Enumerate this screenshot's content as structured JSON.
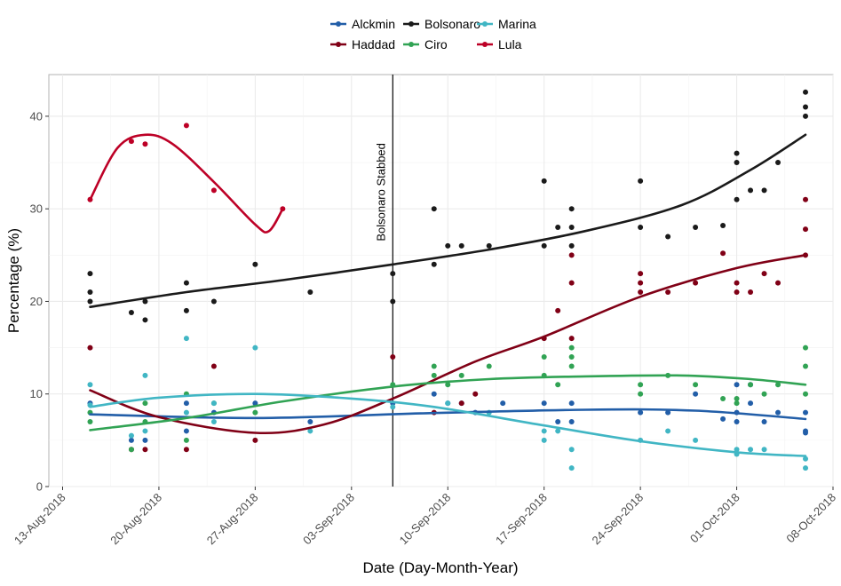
{
  "chart_data": {
    "type": "scatter",
    "title": "",
    "xlabel": "Date (Day-Month-Year)",
    "ylabel": "Percentage (%)",
    "x_ticks": [
      "13-Aug-2018",
      "20-Aug-2018",
      "27-Aug-2018",
      "03-Sep-2018",
      "10-Sep-2018",
      "17-Sep-2018",
      "24-Sep-2018",
      "01-Oct-2018",
      "08-Oct-2018"
    ],
    "xlim": [
      "2018-08-12",
      "2018-10-08"
    ],
    "y_ticks": [
      0,
      10,
      20,
      30,
      40
    ],
    "ylim": [
      0,
      44.5
    ],
    "grid": true,
    "legend_position": "top",
    "annotation": {
      "date": "2018-09-06",
      "label": "Bolsonaro Stabbed"
    },
    "series": [
      {
        "name": "Alckmin",
        "color": "#225ea8",
        "points": [
          [
            "2018-08-15",
            9
          ],
          [
            "2018-08-18",
            5
          ],
          [
            "2018-08-19",
            5
          ],
          [
            "2018-08-22",
            9
          ],
          [
            "2018-08-22",
            6
          ],
          [
            "2018-08-24",
            8
          ],
          [
            "2018-08-27",
            9
          ],
          [
            "2018-08-31",
            7
          ],
          [
            "2018-09-06",
            9
          ],
          [
            "2018-09-09",
            10
          ],
          [
            "2018-09-10",
            9
          ],
          [
            "2018-09-11",
            9
          ],
          [
            "2018-09-12",
            8
          ],
          [
            "2018-09-14",
            9
          ],
          [
            "2018-09-17",
            9
          ],
          [
            "2018-09-18",
            7
          ],
          [
            "2018-09-19",
            7
          ],
          [
            "2018-09-19",
            9
          ],
          [
            "2018-09-24",
            8
          ],
          [
            "2018-09-26",
            8
          ],
          [
            "2018-09-28",
            10
          ],
          [
            "2018-09-30",
            7.3
          ],
          [
            "2018-10-01",
            11
          ],
          [
            "2018-10-01",
            8
          ],
          [
            "2018-10-01",
            7
          ],
          [
            "2018-10-02",
            11
          ],
          [
            "2018-10-02",
            9
          ],
          [
            "2018-10-03",
            7
          ],
          [
            "2018-10-04",
            8
          ],
          [
            "2018-10-06",
            8
          ],
          [
            "2018-10-06",
            6
          ],
          [
            "2018-10-06",
            5.8
          ]
        ],
        "trend": [
          [
            "2018-08-15",
            7.8
          ],
          [
            "2018-08-27",
            7.4
          ],
          [
            "2018-09-08",
            7.9
          ],
          [
            "2018-09-20",
            8.3
          ],
          [
            "2018-09-28",
            8.2
          ],
          [
            "2018-10-06",
            7.3
          ]
        ]
      },
      {
        "name": "Haddad",
        "color": "#800016",
        "points": [
          [
            "2018-08-15",
            15
          ],
          [
            "2018-08-18",
            4
          ],
          [
            "2018-08-19",
            4
          ],
          [
            "2018-08-22",
            4
          ],
          [
            "2018-08-24",
            13
          ],
          [
            "2018-08-27",
            5
          ],
          [
            "2018-09-06",
            14
          ],
          [
            "2018-09-09",
            8
          ],
          [
            "2018-09-11",
            9
          ],
          [
            "2018-09-12",
            10
          ],
          [
            "2018-09-17",
            16
          ],
          [
            "2018-09-18",
            19
          ],
          [
            "2018-09-19",
            25
          ],
          [
            "2018-09-19",
            22
          ],
          [
            "2018-09-19",
            16
          ],
          [
            "2018-09-24",
            23
          ],
          [
            "2018-09-24",
            22
          ],
          [
            "2018-09-24",
            21
          ],
          [
            "2018-09-26",
            21
          ],
          [
            "2018-09-28",
            22
          ],
          [
            "2018-09-30",
            25.2
          ],
          [
            "2018-10-01",
            22
          ],
          [
            "2018-10-01",
            21
          ],
          [
            "2018-10-02",
            21
          ],
          [
            "2018-10-03",
            23
          ],
          [
            "2018-10-04",
            22
          ],
          [
            "2018-10-06",
            31
          ],
          [
            "2018-10-06",
            27.8
          ],
          [
            "2018-10-06",
            25
          ]
        ],
        "trend": [
          [
            "2018-08-15",
            10.4
          ],
          [
            "2018-08-20",
            7.5
          ],
          [
            "2018-08-27",
            5.8
          ],
          [
            "2018-09-01",
            6.7
          ],
          [
            "2018-09-06",
            9.5
          ],
          [
            "2018-09-12",
            13.5
          ],
          [
            "2018-09-17",
            16.2
          ],
          [
            "2018-09-24",
            20.5
          ],
          [
            "2018-10-01",
            23.6
          ],
          [
            "2018-10-06",
            25
          ]
        ]
      },
      {
        "name": "Bolsonaro",
        "color": "#1a1a1a",
        "points": [
          [
            "2018-08-15",
            23
          ],
          [
            "2018-08-15",
            21
          ],
          [
            "2018-08-15",
            20
          ],
          [
            "2018-08-18",
            18.8
          ],
          [
            "2018-08-19",
            20
          ],
          [
            "2018-08-19",
            18
          ],
          [
            "2018-08-22",
            22
          ],
          [
            "2018-08-22",
            19
          ],
          [
            "2018-08-24",
            20
          ],
          [
            "2018-08-27",
            24
          ],
          [
            "2018-08-31",
            21
          ],
          [
            "2018-09-06",
            23
          ],
          [
            "2018-09-06",
            20
          ],
          [
            "2018-09-09",
            30
          ],
          [
            "2018-09-09",
            24
          ],
          [
            "2018-09-10",
            26
          ],
          [
            "2018-09-11",
            26
          ],
          [
            "2018-09-13",
            26
          ],
          [
            "2018-09-17",
            33
          ],
          [
            "2018-09-17",
            26
          ],
          [
            "2018-09-18",
            28
          ],
          [
            "2018-09-19",
            30
          ],
          [
            "2018-09-19",
            28
          ],
          [
            "2018-09-19",
            26
          ],
          [
            "2018-09-24",
            33
          ],
          [
            "2018-09-24",
            28
          ],
          [
            "2018-09-26",
            27
          ],
          [
            "2018-09-28",
            28
          ],
          [
            "2018-09-30",
            28.2
          ],
          [
            "2018-10-01",
            36
          ],
          [
            "2018-10-01",
            35
          ],
          [
            "2018-10-01",
            31
          ],
          [
            "2018-10-02",
            32
          ],
          [
            "2018-10-03",
            32
          ],
          [
            "2018-10-04",
            35
          ],
          [
            "2018-10-06",
            42.6
          ],
          [
            "2018-10-06",
            41
          ],
          [
            "2018-10-06",
            40
          ]
        ],
        "trend": [
          [
            "2018-08-15",
            19.4
          ],
          [
            "2018-08-22",
            21
          ],
          [
            "2018-08-29",
            22.3
          ],
          [
            "2018-09-06",
            24
          ],
          [
            "2018-09-13",
            25.6
          ],
          [
            "2018-09-20",
            27.6
          ],
          [
            "2018-09-27",
            30.4
          ],
          [
            "2018-10-02",
            34.2
          ],
          [
            "2018-10-06",
            38
          ]
        ]
      },
      {
        "name": "Ciro",
        "color": "#31a354",
        "points": [
          [
            "2018-08-15",
            8
          ],
          [
            "2018-08-15",
            7
          ],
          [
            "2018-08-18",
            4
          ],
          [
            "2018-08-19",
            9
          ],
          [
            "2018-08-19",
            7
          ],
          [
            "2018-08-22",
            10
          ],
          [
            "2018-08-22",
            5
          ],
          [
            "2018-08-24",
            9
          ],
          [
            "2018-08-27",
            8
          ],
          [
            "2018-09-06",
            11
          ],
          [
            "2018-09-09",
            13
          ],
          [
            "2018-09-09",
            12
          ],
          [
            "2018-09-10",
            11
          ],
          [
            "2018-09-11",
            12
          ],
          [
            "2018-09-13",
            13
          ],
          [
            "2018-09-17",
            14
          ],
          [
            "2018-09-17",
            12
          ],
          [
            "2018-09-18",
            11
          ],
          [
            "2018-09-19",
            15
          ],
          [
            "2018-09-19",
            14
          ],
          [
            "2018-09-19",
            13
          ],
          [
            "2018-09-24",
            11
          ],
          [
            "2018-09-24",
            10
          ],
          [
            "2018-09-26",
            12
          ],
          [
            "2018-09-28",
            11
          ],
          [
            "2018-09-30",
            9.5
          ],
          [
            "2018-10-01",
            9.5
          ],
          [
            "2018-10-01",
            9
          ],
          [
            "2018-10-02",
            11
          ],
          [
            "2018-10-03",
            10
          ],
          [
            "2018-10-04",
            11
          ],
          [
            "2018-10-06",
            15
          ],
          [
            "2018-10-06",
            13
          ],
          [
            "2018-10-06",
            10
          ]
        ],
        "trend": [
          [
            "2018-08-15",
            6.1
          ],
          [
            "2018-08-22",
            7.4
          ],
          [
            "2018-08-29",
            9.2
          ],
          [
            "2018-09-06",
            10.8
          ],
          [
            "2018-09-13",
            11.6
          ],
          [
            "2018-09-20",
            11.9
          ],
          [
            "2018-09-27",
            12
          ],
          [
            "2018-10-02",
            11.6
          ],
          [
            "2018-10-06",
            11
          ]
        ]
      },
      {
        "name": "Marina",
        "color": "#41b6c4",
        "points": [
          [
            "2018-08-15",
            11
          ],
          [
            "2018-08-15",
            8.8
          ],
          [
            "2018-08-18",
            5.5
          ],
          [
            "2018-08-19",
            12
          ],
          [
            "2018-08-19",
            6
          ],
          [
            "2018-08-22",
            16
          ],
          [
            "2018-08-22",
            8
          ],
          [
            "2018-08-24",
            9
          ],
          [
            "2018-08-24",
            7
          ],
          [
            "2018-08-27",
            15
          ],
          [
            "2018-08-31",
            6
          ],
          [
            "2018-09-06",
            8.6
          ],
          [
            "2018-09-10",
            9
          ],
          [
            "2018-09-13",
            8
          ],
          [
            "2018-09-17",
            6
          ],
          [
            "2018-09-17",
            5
          ],
          [
            "2018-09-18",
            6
          ],
          [
            "2018-09-19",
            4
          ],
          [
            "2018-09-19",
            2
          ],
          [
            "2018-09-24",
            5
          ],
          [
            "2018-09-26",
            6
          ],
          [
            "2018-09-28",
            5
          ],
          [
            "2018-10-01",
            4
          ],
          [
            "2018-10-01",
            3.5
          ],
          [
            "2018-10-02",
            4
          ],
          [
            "2018-10-03",
            4
          ],
          [
            "2018-10-06",
            3
          ],
          [
            "2018-10-06",
            2
          ]
        ],
        "trend": [
          [
            "2018-08-15",
            8.6
          ],
          [
            "2018-08-20",
            9.6
          ],
          [
            "2018-08-27",
            10
          ],
          [
            "2018-09-03",
            9.5
          ],
          [
            "2018-09-09",
            8.6
          ],
          [
            "2018-09-17",
            6.6
          ],
          [
            "2018-09-24",
            4.9
          ],
          [
            "2018-10-01",
            3.7
          ],
          [
            "2018-10-06",
            3.3
          ]
        ]
      },
      {
        "name": "Lula",
        "color": "#bd0026",
        "points": [
          [
            "2018-08-15",
            31
          ],
          [
            "2018-08-18",
            37.3
          ],
          [
            "2018-08-19",
            37
          ],
          [
            "2018-08-22",
            39
          ],
          [
            "2018-08-24",
            32
          ],
          [
            "2018-08-29",
            30
          ]
        ],
        "trend": [
          [
            "2018-08-15",
            31
          ],
          [
            "2018-08-17",
            36.6
          ],
          [
            "2018-08-19",
            38
          ],
          [
            "2018-08-21",
            37
          ],
          [
            "2018-08-24",
            32.9
          ],
          [
            "2018-08-27",
            28.3
          ],
          [
            "2018-08-28",
            27.6
          ],
          [
            "2018-08-29",
            30
          ]
        ]
      }
    ]
  }
}
